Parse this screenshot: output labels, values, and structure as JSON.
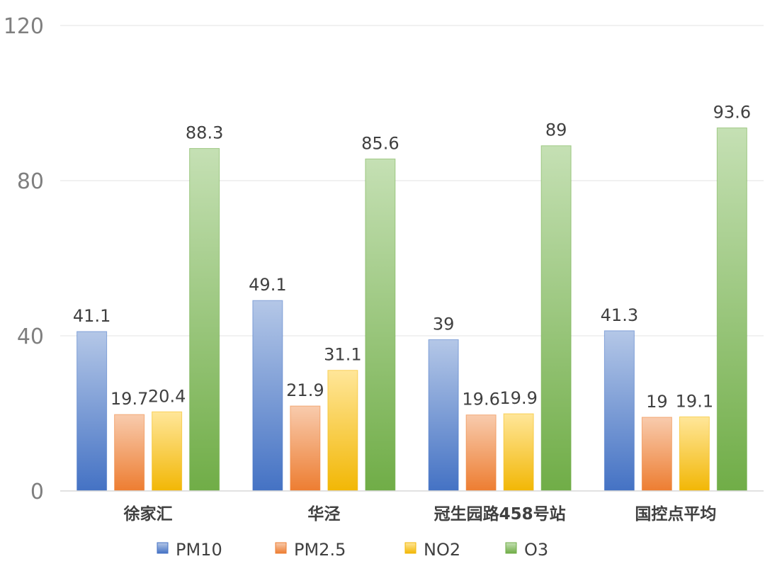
{
  "chart_data": {
    "type": "bar",
    "categories": [
      "徐家汇",
      "华泾",
      "冠生园路458号站",
      "国控点平均"
    ],
    "series": [
      {
        "name": "PM10",
        "values": [
          41.1,
          49.1,
          39,
          41.3
        ],
        "color": "#4472c4",
        "light": "#b4c7e7"
      },
      {
        "name": "PM2.5",
        "values": [
          19.7,
          21.9,
          19.6,
          19
        ],
        "color": "#ed7d31",
        "light": "#f8cbad"
      },
      {
        "name": "NO2",
        "values": [
          20.4,
          31.1,
          19.9,
          19.1
        ],
        "color": "#f2b705",
        "light": "#ffe699"
      },
      {
        "name": "O3",
        "values": [
          88.3,
          85.6,
          89,
          93.6
        ],
        "color": "#70ad47",
        "light": "#c5e0b4"
      }
    ],
    "data_labels": [
      [
        "41.1",
        "49.1",
        "39",
        "41.3"
      ],
      [
        "19.7",
        "21.9",
        "19.6",
        "19"
      ],
      [
        "20.4",
        "31.1",
        "19.9",
        "19.1"
      ],
      [
        "88.3",
        "85.6",
        "89",
        "93.6"
      ]
    ],
    "yticks": [
      0,
      40,
      80,
      120
    ],
    "ytick_labels": [
      "0",
      "40",
      "80",
      "120"
    ],
    "ylim": [
      0,
      120
    ],
    "grid": true,
    "legend_position": "bottom"
  }
}
